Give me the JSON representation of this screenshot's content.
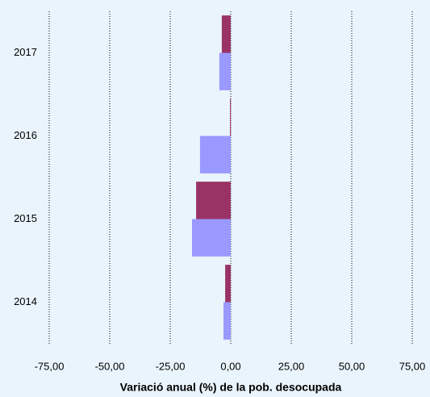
{
  "chart_data": {
    "type": "hbar",
    "x_label": "Variació anual (%) de la pob. desocupada",
    "categories": [
      "2014",
      "2015",
      "2016",
      "2017"
    ],
    "series": [
      {
        "color": "#993366",
        "values": [
          -2.3,
          -14.3,
          -0.3,
          -3.7
        ]
      },
      {
        "color": "#9999ff",
        "values": [
          -3.0,
          -16.0,
          -12.7,
          -4.7
        ]
      }
    ],
    "xlim": [
      -75,
      75
    ],
    "xticks": [
      {
        "value": -75,
        "label": "-75,00"
      },
      {
        "value": -50,
        "label": "-50,00"
      },
      {
        "value": -25,
        "label": "-25,00"
      },
      {
        "value": 0,
        "label": "0,00"
      },
      {
        "value": 25,
        "label": "25,00"
      },
      {
        "value": 50,
        "label": "50,00"
      },
      {
        "value": 75,
        "label": "75,00"
      }
    ],
    "grid": true
  }
}
